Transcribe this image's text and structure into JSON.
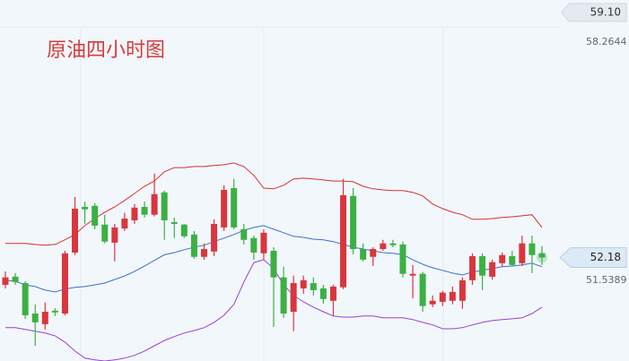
{
  "chart_data": {
    "type": "candlestick",
    "title": "原油四小时图",
    "ylim": [
      49.26,
      59.45
    ],
    "yticks": [
      58.2644,
      51.5389
    ],
    "high_price": {
      "value": 59.1,
      "label": "59.10"
    },
    "last_price": 52.18,
    "up_color": "#d9363e",
    "down_color": "#3cb043",
    "open": [
      51.41,
      51.64,
      51.46,
      50.6,
      50.3,
      50.68,
      50.6,
      52.32,
      53.61,
      53.64,
      53.11,
      52.6,
      53.0,
      53.23,
      53.61,
      53.39,
      54.02,
      53.18,
      53.11,
      52.83,
      52.2,
      52.35,
      53.03,
      54.14,
      52.98,
      52.73,
      52.3,
      52.37,
      51.62,
      50.65,
      51.31,
      51.46,
      51.31,
      50.96,
      51.34,
      53.92,
      52.42,
      52.2,
      52.42,
      52.58,
      52.55,
      51.67,
      51.72,
      50.86,
      50.93,
      50.96,
      50.96,
      51.54,
      52.22,
      51.64,
      52.02,
      52.22,
      52.02,
      52.58,
      52.3
    ],
    "high": [
      51.79,
      51.74,
      51.51,
      50.86,
      50.91,
      50.75,
      52.37,
      53.89,
      53.76,
      53.71,
      53.39,
      53.13,
      53.44,
      53.69,
      53.76,
      54.55,
      54.07,
      53.31,
      53.13,
      52.93,
      52.58,
      53.26,
      54.22,
      54.4,
      53.13,
      52.8,
      52.98,
      52.47,
      51.92,
      51.67,
      51.67,
      51.62,
      51.41,
      51.41,
      54.4,
      54.14,
      52.58,
      52.47,
      52.68,
      52.68,
      52.63,
      51.97,
      51.77,
      51.11,
      51.24,
      51.36,
      51.62,
      52.3,
      52.3,
      52.12,
      52.32,
      52.37,
      52.8,
      52.8,
      52.5
    ],
    "low": [
      51.31,
      51.41,
      50.45,
      49.69,
      50.15,
      50.53,
      50.55,
      52.25,
      53.13,
      52.98,
      52.58,
      52.07,
      52.93,
      53.13,
      53.31,
      53.34,
      52.68,
      52.73,
      52.73,
      52.15,
      52.12,
      52.22,
      52.93,
      52.98,
      52.55,
      52.12,
      52.12,
      50.22,
      50.48,
      50.1,
      51.16,
      51.11,
      50.88,
      50.53,
      51.29,
      52.27,
      52.07,
      51.94,
      52.37,
      52.47,
      51.62,
      51.03,
      50.65,
      50.78,
      50.81,
      50.86,
      50.73,
      51.41,
      51.26,
      51.56,
      51.92,
      51.92,
      51.94,
      51.74,
      51.97
    ],
    "close": [
      51.62,
      51.49,
      50.55,
      50.35,
      50.65,
      50.63,
      52.3,
      53.56,
      53.54,
      53.08,
      52.63,
      53.03,
      53.28,
      53.59,
      53.39,
      53.97,
      53.23,
      53.13,
      52.78,
      52.2,
      52.42,
      53.13,
      54.09,
      53.03,
      52.68,
      52.32,
      52.88,
      51.62,
      50.6,
      51.46,
      51.54,
      51.26,
      51.01,
      51.36,
      53.94,
      52.42,
      52.12,
      52.42,
      52.58,
      52.53,
      51.72,
      51.72,
      50.81,
      50.96,
      51.19,
      51.21,
      51.54,
      52.22,
      51.67,
      52.05,
      52.25,
      51.97,
      52.58,
      52.25,
      52.18
    ],
    "bands": [
      {
        "color": "#d9302c",
        "values": [
          52.58,
          52.58,
          52.58,
          52.55,
          52.53,
          52.55,
          52.68,
          52.83,
          53.08,
          53.28,
          53.46,
          53.61,
          53.79,
          53.99,
          54.19,
          54.34,
          54.6,
          54.72,
          54.72,
          54.75,
          54.75,
          54.78,
          54.8,
          54.85,
          54.75,
          54.5,
          54.14,
          54.12,
          54.22,
          54.4,
          54.42,
          54.4,
          54.37,
          54.34,
          54.34,
          54.32,
          54.19,
          54.12,
          54.09,
          54.07,
          54.07,
          54.02,
          53.92,
          53.69,
          53.56,
          53.46,
          53.39,
          53.26,
          53.26,
          53.28,
          53.31,
          53.33,
          53.36,
          53.39,
          53.03
        ]
      },
      {
        "color": "#3a6fd8",
        "values": [
          51.54,
          51.51,
          51.41,
          51.36,
          51.26,
          51.21,
          51.29,
          51.34,
          51.36,
          51.41,
          51.46,
          51.56,
          51.66,
          51.79,
          51.94,
          52.1,
          52.26,
          52.32,
          52.4,
          52.47,
          52.53,
          52.63,
          52.73,
          52.83,
          52.95,
          53.03,
          53.08,
          52.98,
          52.88,
          52.78,
          52.75,
          52.7,
          52.68,
          52.63,
          52.55,
          52.47,
          52.42,
          52.37,
          52.32,
          52.3,
          52.26,
          52.12,
          51.99,
          51.89,
          51.82,
          51.74,
          51.69,
          51.77,
          51.82,
          51.87,
          51.92,
          51.94,
          51.97,
          52.02,
          51.92
        ]
      },
      {
        "color": "#9b3fd8",
        "values": [
          50.2,
          50.2,
          50.15,
          50.1,
          50.05,
          49.97,
          49.79,
          49.54,
          49.34,
          49.29,
          49.26,
          49.29,
          49.34,
          49.42,
          49.54,
          49.69,
          49.84,
          49.95,
          50.05,
          50.12,
          50.2,
          50.35,
          50.55,
          50.86,
          51.49,
          52.04,
          52.12,
          51.87,
          51.41,
          51.11,
          50.93,
          50.78,
          50.65,
          50.53,
          50.5,
          50.5,
          50.53,
          50.53,
          50.48,
          50.48,
          50.48,
          50.43,
          50.35,
          50.28,
          50.17,
          50.17,
          50.2,
          50.28,
          50.35,
          50.4,
          50.43,
          50.45,
          50.48,
          50.6,
          50.78
        ]
      }
    ]
  }
}
